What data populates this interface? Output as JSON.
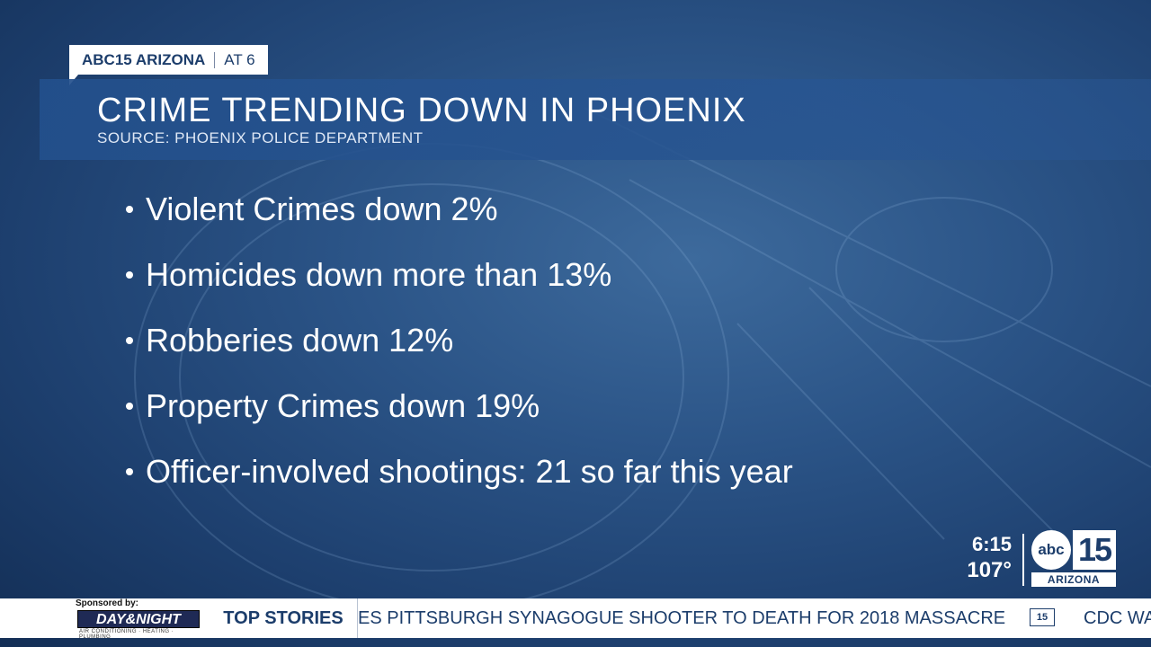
{
  "tag": {
    "station": "ABC15 ARIZONA",
    "segment": "AT 6"
  },
  "title_bar": {
    "title": "CRIME TRENDING DOWN IN PHOENIX",
    "source": "SOURCE: PHOENIX POLICE DEPARTMENT"
  },
  "bullets": [
    "Violent Crimes down 2%",
    "Homicides down more than 13%",
    "Robberies down 12%",
    "Property Crimes down 19%",
    "Officer-involved shootings: 21 so far this year"
  ],
  "clock": {
    "time": "6:15",
    "temperature": "107°"
  },
  "logo": {
    "abc": "abc",
    "number": "15",
    "region": "ARIZONA"
  },
  "ticker": {
    "sponsor_label": "Sponsored by:",
    "sponsor_name": "DAY&NIGHT",
    "sponsor_sub": "AIR CONDITIONING · HEATING · PLUMBING",
    "section": "TOP STORIES",
    "headline": "ES PITTSBURGH SYNAGOGUE SHOOTER TO DEATH FOR 2018 MASSACRE",
    "mini_logo": "15",
    "next_headline": "CDC WA"
  },
  "colors": {
    "brand_navy": "#1c3d6b",
    "background_blue": "#2b5487",
    "title_bar_blue": "#23508c"
  }
}
